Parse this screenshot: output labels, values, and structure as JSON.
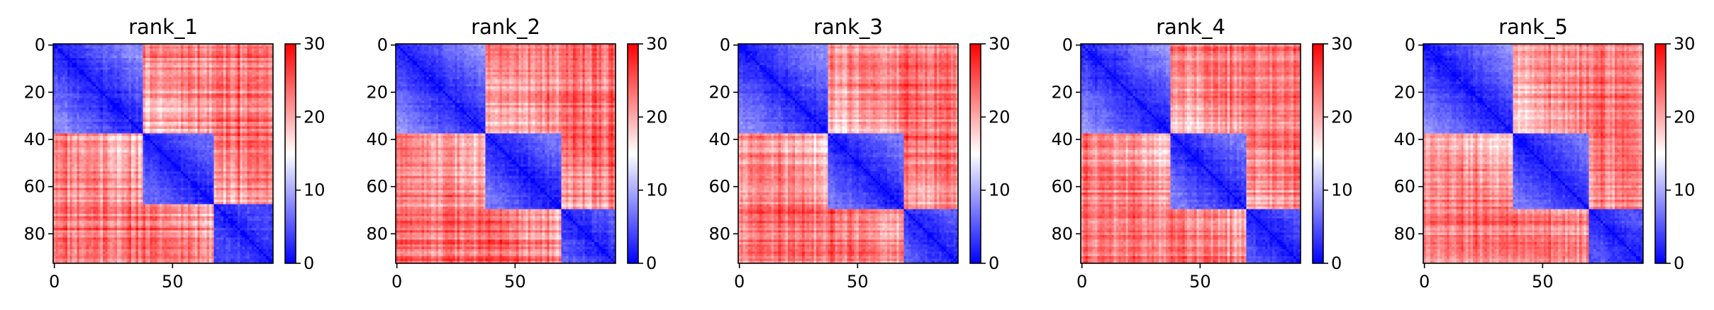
{
  "chart_data": [
    {
      "type": "heatmap",
      "title": "rank_1",
      "matrix_size": 93,
      "xticks": [
        0,
        50
      ],
      "yticks": [
        0,
        20,
        40,
        60,
        80
      ],
      "colorbar_ticks": [
        0,
        10,
        20,
        30
      ],
      "vmin": 0,
      "vmax": 30,
      "colormap": [
        "#0000ff",
        "#ffffff",
        "#ff0000"
      ],
      "domains": [
        {
          "start": 0,
          "end": 38,
          "value": 8
        },
        {
          "start": 38,
          "end": 68,
          "value": 6
        },
        {
          "start": 68,
          "end": 93,
          "value": 4
        }
      ],
      "seed": 11
    },
    {
      "type": "heatmap",
      "title": "rank_2",
      "matrix_size": 93,
      "xticks": [
        0,
        50
      ],
      "yticks": [
        0,
        20,
        40,
        60,
        80
      ],
      "colorbar_ticks": [
        0,
        10,
        20,
        30
      ],
      "vmin": 0,
      "vmax": 30,
      "colormap": [
        "#0000ff",
        "#ffffff",
        "#ff0000"
      ],
      "domains": [
        {
          "start": 0,
          "end": 38,
          "value": 9
        },
        {
          "start": 38,
          "end": 70,
          "value": 7
        },
        {
          "start": 70,
          "end": 93,
          "value": 5
        }
      ],
      "seed": 23
    },
    {
      "type": "heatmap",
      "title": "rank_3",
      "matrix_size": 93,
      "xticks": [
        0,
        50
      ],
      "yticks": [
        0,
        20,
        40,
        60,
        80
      ],
      "colorbar_ticks": [
        0,
        10,
        20,
        30
      ],
      "vmin": 0,
      "vmax": 30,
      "colormap": [
        "#0000ff",
        "#ffffff",
        "#ff0000"
      ],
      "domains": [
        {
          "start": 0,
          "end": 38,
          "value": 9
        },
        {
          "start": 38,
          "end": 70,
          "value": 7
        },
        {
          "start": 70,
          "end": 93,
          "value": 5
        }
      ],
      "seed": 37
    },
    {
      "type": "heatmap",
      "title": "rank_4",
      "matrix_size": 93,
      "xticks": [
        0,
        50
      ],
      "yticks": [
        0,
        20,
        40,
        60,
        80
      ],
      "colorbar_ticks": [
        0,
        10,
        20,
        30
      ],
      "vmin": 0,
      "vmax": 30,
      "colormap": [
        "#0000ff",
        "#ffffff",
        "#ff0000"
      ],
      "domains": [
        {
          "start": 0,
          "end": 38,
          "value": 9
        },
        {
          "start": 38,
          "end": 70,
          "value": 7
        },
        {
          "start": 70,
          "end": 93,
          "value": 5
        }
      ],
      "seed": 41
    },
    {
      "type": "heatmap",
      "title": "rank_5",
      "matrix_size": 93,
      "xticks": [
        0,
        50
      ],
      "yticks": [
        0,
        20,
        40,
        60,
        80
      ],
      "colorbar_ticks": [
        0,
        10,
        20,
        30
      ],
      "vmin": 0,
      "vmax": 30,
      "colormap": [
        "#0000ff",
        "#ffffff",
        "#ff0000"
      ],
      "domains": [
        {
          "start": 0,
          "end": 38,
          "value": 9
        },
        {
          "start": 38,
          "end": 70,
          "value": 7
        },
        {
          "start": 70,
          "end": 93,
          "value": 5
        }
      ],
      "seed": 53
    }
  ]
}
